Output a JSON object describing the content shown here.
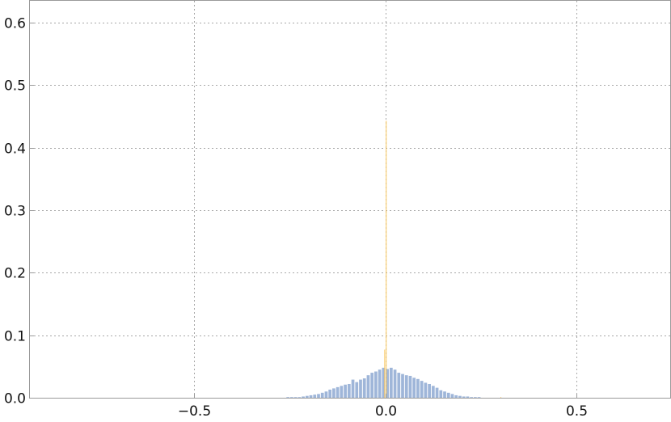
{
  "chart_data": {
    "type": "bar",
    "title": "",
    "xlabel": "",
    "ylabel": "",
    "xlim": [
      -0.93,
      0.745
    ],
    "ylim": [
      0,
      0.635
    ],
    "grid": true,
    "legend": "none",
    "x_ticks": [
      {
        "value": -0.5,
        "label": "−0.5"
      },
      {
        "value": 0.0,
        "label": "0.0"
      },
      {
        "value": 0.5,
        "label": "0.5"
      }
    ],
    "y_ticks": [
      {
        "value": 0.0,
        "label": "0.0"
      },
      {
        "value": 0.1,
        "label": "0.1"
      },
      {
        "value": 0.2,
        "label": "0.2"
      },
      {
        "value": 0.3,
        "label": "0.3"
      },
      {
        "value": 0.4,
        "label": "0.4"
      },
      {
        "value": 0.5,
        "label": "0.5"
      },
      {
        "value": 0.6,
        "label": "0.6"
      }
    ],
    "bin_width": 0.01,
    "series": [
      {
        "color": "#9fb6d9",
        "bins": [
          [
            -0.26,
            0.001
          ],
          [
            -0.25,
            0.001
          ],
          [
            -0.24,
            0.001
          ],
          [
            -0.23,
            0.001
          ],
          [
            -0.22,
            0.002
          ],
          [
            -0.21,
            0.003
          ],
          [
            -0.2,
            0.004
          ],
          [
            -0.19,
            0.005
          ],
          [
            -0.18,
            0.006
          ],
          [
            -0.17,
            0.008
          ],
          [
            -0.16,
            0.01
          ],
          [
            -0.15,
            0.013
          ],
          [
            -0.14,
            0.015
          ],
          [
            -0.13,
            0.017
          ],
          [
            -0.12,
            0.019
          ],
          [
            -0.11,
            0.021
          ],
          [
            -0.1,
            0.022
          ],
          [
            -0.09,
            0.029
          ],
          [
            -0.08,
            0.025
          ],
          [
            -0.07,
            0.029
          ],
          [
            -0.06,
            0.031
          ],
          [
            -0.05,
            0.036
          ],
          [
            -0.04,
            0.04
          ],
          [
            -0.03,
            0.042
          ],
          [
            -0.02,
            0.045
          ],
          [
            -0.01,
            0.048
          ],
          [
            0.0,
            0.046
          ],
          [
            0.01,
            0.048
          ],
          [
            0.02,
            0.045
          ],
          [
            0.03,
            0.04
          ],
          [
            0.04,
            0.038
          ],
          [
            0.05,
            0.036
          ],
          [
            0.06,
            0.035
          ],
          [
            0.07,
            0.032
          ],
          [
            0.08,
            0.03
          ],
          [
            0.09,
            0.027
          ],
          [
            0.1,
            0.024
          ],
          [
            0.11,
            0.022
          ],
          [
            0.12,
            0.019
          ],
          [
            0.13,
            0.016
          ],
          [
            0.14,
            0.012
          ],
          [
            0.15,
            0.01
          ],
          [
            0.16,
            0.008
          ],
          [
            0.17,
            0.006
          ],
          [
            0.18,
            0.004
          ],
          [
            0.19,
            0.003
          ],
          [
            0.2,
            0.002
          ],
          [
            0.21,
            0.002
          ],
          [
            0.22,
            0.001
          ],
          [
            0.23,
            0.001
          ],
          [
            0.24,
            0.001
          ]
        ]
      },
      {
        "color": "#f9c65e",
        "bins": [
          [
            -0.004,
            0.077
          ],
          [
            0.0,
            0.443
          ],
          [
            0.3,
            0.001
          ]
        ],
        "bin_width": 0.004
      }
    ]
  }
}
